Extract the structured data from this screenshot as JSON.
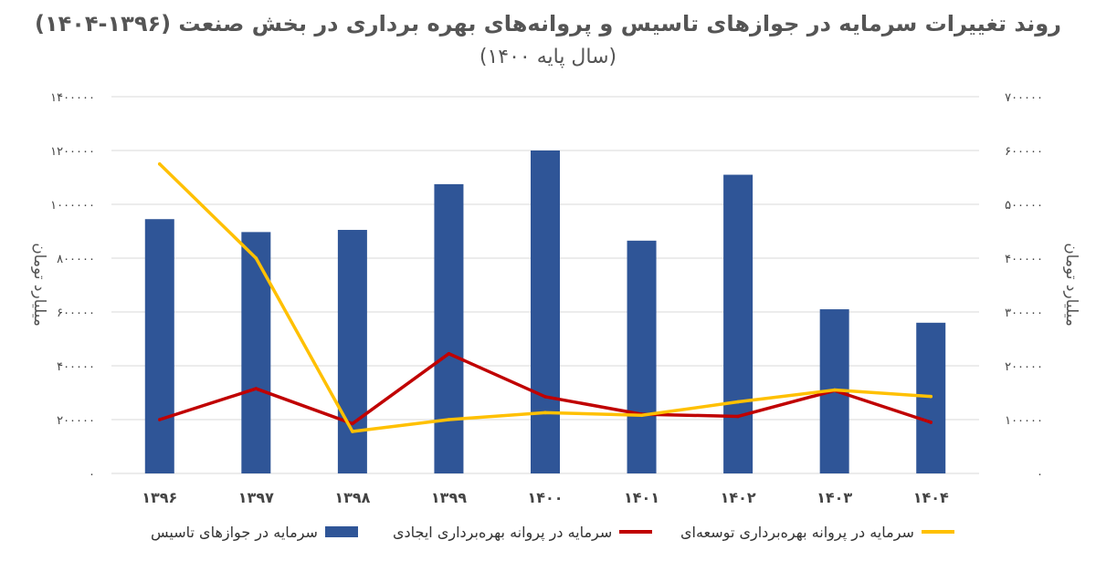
{
  "title": "روند تغییرات سرمایه در جوازهای تاسیس و پروانه‌های بهره برداری در بخش صنعت (۱۳۹۶-۱۴۰۴)",
  "subtitle": "(سال پایه ۱۴۰۰)",
  "chart_data": {
    "type": "bar",
    "categories": [
      "۱۳۹۶",
      "۱۳۹۷",
      "۱۳۹۸",
      "۱۳۹۹",
      "۱۴۰۰",
      "۱۴۰۱",
      "۱۴۰۲",
      "۱۴۰۳",
      "۱۴۰۴"
    ],
    "ylabel_left": "میلیارد تومان",
    "ylabel_right": "میلیارد تومان",
    "ylim_left": [
      0,
      1400000
    ],
    "ylim_right": [
      0,
      700000
    ],
    "yticks_left": [
      "۰",
      "۲۰۰۰۰۰",
      "۴۰۰۰۰۰",
      "۶۰۰۰۰۰",
      "۸۰۰۰۰۰",
      "۱۰۰۰۰۰۰",
      "۱۲۰۰۰۰۰",
      "۱۴۰۰۰۰۰"
    ],
    "yticks_right": [
      "۰",
      "۱۰۰۰۰۰",
      "۲۰۰۰۰۰",
      "۳۰۰۰۰۰",
      "۴۰۰۰۰۰",
      "۵۰۰۰۰۰",
      "۶۰۰۰۰۰",
      "۷۰۰۰۰۰"
    ],
    "grid": true,
    "legend_position": "bottom",
    "series": [
      {
        "name": "سرمایه در جوازهای تاسیس",
        "type": "bar",
        "axis": "left",
        "color": "#2F5597",
        "values": [
          945000,
          897000,
          905000,
          1075000,
          1200000,
          865000,
          1110000,
          610000,
          560000
        ]
      },
      {
        "name": "سرمایه در پروانه بهره‌برداری ایجادی",
        "type": "line",
        "axis": "left",
        "color": "#C00000",
        "values": [
          200000,
          315000,
          185000,
          445000,
          285000,
          220000,
          212000,
          308000,
          190000
        ]
      },
      {
        "name": "سرمایه در پروانه بهره‌برداری توسعه‌ای",
        "type": "line",
        "axis": "right",
        "color": "#FFC000",
        "values": [
          575000,
          400000,
          78000,
          100000,
          113000,
          108000,
          133000,
          155000,
          143000
        ]
      }
    ]
  }
}
